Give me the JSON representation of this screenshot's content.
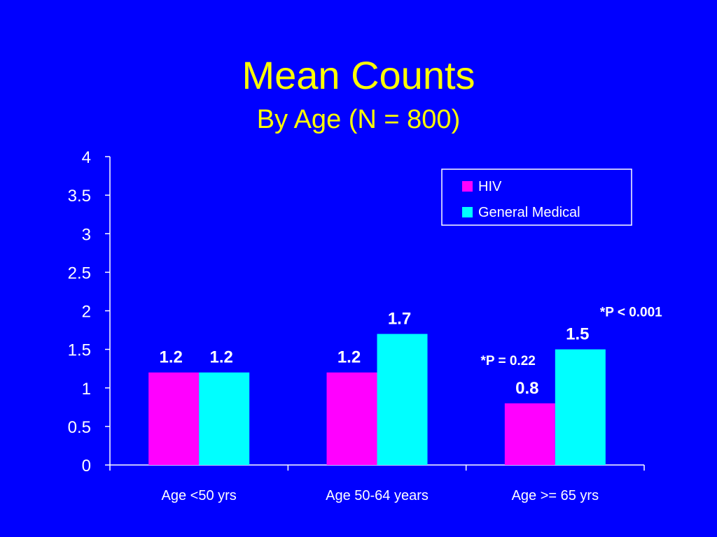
{
  "colors": {
    "background": "#0000ff",
    "title": "#ffff00",
    "text": "#ffffff",
    "axis": "#ffffff"
  },
  "chart_data": {
    "type": "bar",
    "title": "Mean Counts",
    "subtitle": "By Age (N = 800)",
    "categories": [
      "Age <50 yrs",
      "Age 50-64 years",
      "Age >= 65 yrs"
    ],
    "series": [
      {
        "name": "HIV",
        "color": "#ff00ff",
        "values": [
          1.2,
          1.2,
          0.8
        ],
        "labels": [
          "1.2",
          "1.2",
          "0.8"
        ]
      },
      {
        "name": "General Medical",
        "color": "#00ffff",
        "values": [
          1.2,
          1.7,
          1.5
        ],
        "labels": [
          "1.2",
          "1.7",
          "1.5"
        ]
      }
    ],
    "ylim": [
      0,
      4
    ],
    "yticks": [
      "0",
      "0.5",
      "1",
      "1.5",
      "2",
      "2.5",
      "3",
      "3.5",
      "4"
    ],
    "legend_position": "top-right",
    "grid": false,
    "annotations": [
      {
        "text": "*P = 0.22",
        "category": "Age >= 65 yrs",
        "series": "HIV"
      },
      {
        "text": "*P < 0.001",
        "category": "Age >= 65 yrs",
        "series": "General Medical"
      }
    ]
  }
}
